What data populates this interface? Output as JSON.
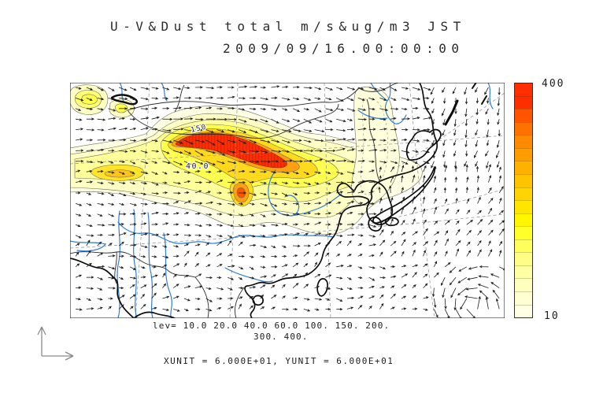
{
  "title": {
    "line1": "U-V&Dust total m/s&ug/m3 JST",
    "line2": "2009/09/16.00:00:00"
  },
  "colorbar": {
    "max_label": "400",
    "min_label": "10",
    "segments_top_to_bottom": [
      "#ff2e00",
      "#ff2e00",
      "#ff5400",
      "#ff7200",
      "#ff8a00",
      "#ff9d00",
      "#ffb100",
      "#ffc300",
      "#ffd400",
      "#ffe500",
      "#fff600",
      "#ffff29",
      "#ffff5c",
      "#ffff85",
      "#ffffa3",
      "#ffffbd",
      "#ffffd2",
      "#ffffe4"
    ]
  },
  "levels": {
    "line1": "lev= 10.0 20.0 40.0 60.0 100. 150. 200.",
    "line2": "300. 400."
  },
  "units_text": "XUNIT = 6.000E+01, YUNIT = 6.000E+01",
  "map": {
    "contour_label_150": "150",
    "contour_label_40": "40.0",
    "coast_color": "#111111",
    "river_color": "#2f7fd6",
    "graticule_color": "#999999",
    "arrow_color": "#1d1d1d"
  },
  "chart_data": {
    "type": "heatmap",
    "title": "U-V&Dust total m/s&ug/m3 JST",
    "subtitle": "2009/09/16.00:00:00",
    "variable": "Total dust concentration (ug/m3) shaded contours with U-V wind vectors (m/s), Japan Standard Time",
    "contour_levels": [
      10.0,
      20.0,
      40.0,
      60.0,
      100,
      150,
      200,
      300,
      400
    ],
    "colorbar_range": [
      10,
      400
    ],
    "colorbar_orientation": "vertical-right",
    "contour_labels_visible": [
      "150",
      "40.0"
    ],
    "vector_scale": {
      "xunit": "6.000E+01",
      "yunit": "6.000E+01"
    },
    "region": "East Asia map (China, Mongolia, Korea, Japan) with coastlines, national borders, rivers and dashed graticule",
    "notable_features": [
      "Elongated dust maximum >400 ug/m3 over Mongolia / Inner Mongolia (red core with 150 contour label)",
      "Secondary orange core south of main plume near the Yellow River loop",
      "Broad 10-60 ug/m3 pale yellow plume extending east toward northeast China and Korea",
      "Two small dust blobs in the far northwest corner",
      "Cyclonic (typhoon-like) wind circulation in the lower-right corner of the domain",
      "40.0 contour label on western flank of plume"
    ],
    "grid_on": false,
    "legend_position": "right colorbar 10..400 plus level list below map"
  }
}
